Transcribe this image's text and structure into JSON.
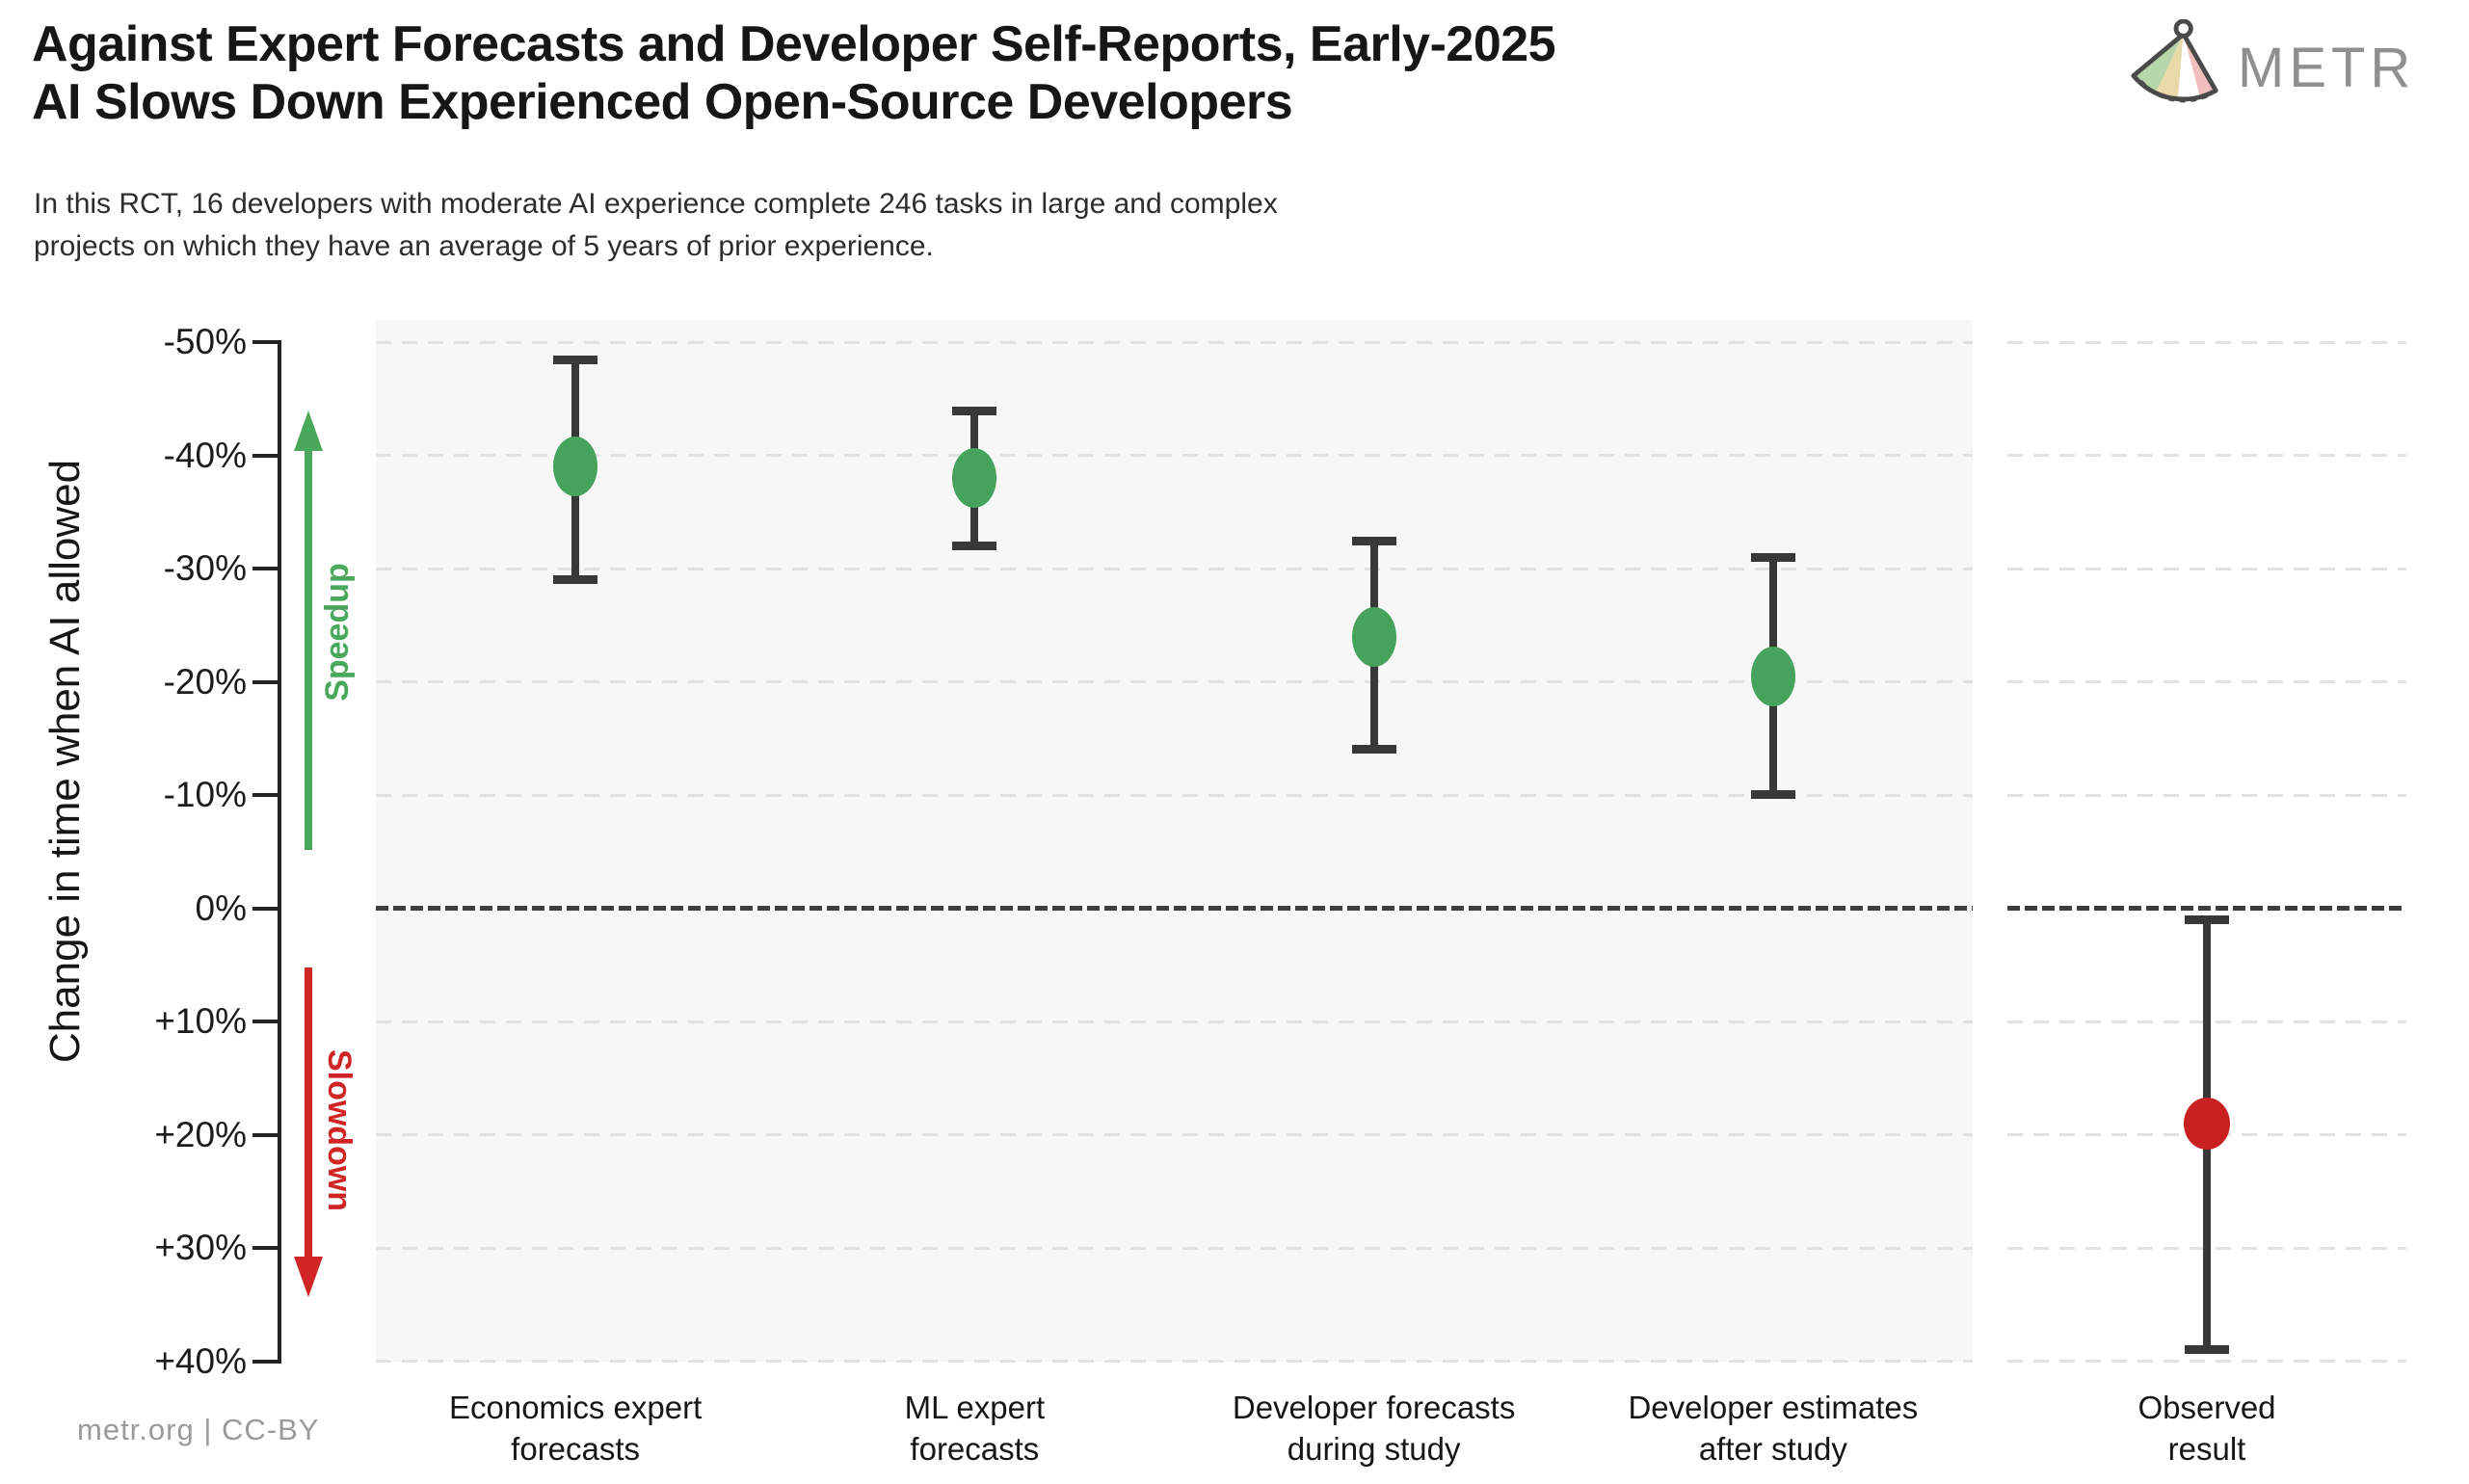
{
  "header": {
    "title": "Against Expert Forecasts and Developer Self-Reports, Early-2025\nAI Slows Down Experienced Open-Source Developers",
    "subtitle": "In this RCT, 16 developers with moderate AI experience complete 246 tasks in large and complex\nprojects on which they have an average of 5 years of prior experience.",
    "logo_text": "METR"
  },
  "footer": {
    "credit": "metr.org  |  CC-BY"
  },
  "colors": {
    "point_green": "#45a35c",
    "point_red": "#c92121",
    "speedup_green": "#4aa85c",
    "slowdown_red": "#cf2525",
    "grid": "#e2e2e2",
    "zero_line": "#3e3e3e",
    "panel_bg": "#f7f7f7",
    "axis": "#232323"
  },
  "chart_data": {
    "type": "scatter",
    "subtype": "point-estimates-with-error-bars",
    "title": "Against Expert Forecasts and Developer Self-Reports, Early-2025 AI Slows Down Experienced Open-Source Developers",
    "subtitle": "In this RCT, 16 developers with moderate AI experience complete 246 tasks in large and complex projects on which they have an average of 5 years of prior experience.",
    "ylabel": "Change in time when AI allowed",
    "y_unit": "percent",
    "y_axis_inverted": true,
    "ylim": [
      -50,
      40
    ],
    "y_ticks": [
      -50,
      -40,
      -30,
      -20,
      -10,
      0,
      10,
      20,
      30,
      40
    ],
    "y_tick_labels": [
      "-50%",
      "-40%",
      "-30%",
      "-20%",
      "-10%",
      "0%",
      "+10%",
      "+20%",
      "+30%",
      "+40%"
    ],
    "grid": "dashed-horizontal",
    "zero_reference_line": true,
    "annotations": {
      "speedup": {
        "label": "Speedup",
        "direction": "up",
        "color": "#4aa85c"
      },
      "slowdown": {
        "label": "Slowdown",
        "direction": "down",
        "color": "#cf2525"
      }
    },
    "points": [
      {
        "category": "Economics expert\nforecasts",
        "mean": -39,
        "ci": [
          -48.5,
          -29
        ],
        "color": "#45a35c",
        "panel": "main"
      },
      {
        "category": "ML expert\nforecasts",
        "mean": -38,
        "ci": [
          -44,
          -32
        ],
        "color": "#45a35c",
        "panel": "main"
      },
      {
        "category": "Developer forecasts\nduring study",
        "mean": -24,
        "ci": [
          -32.5,
          -14
        ],
        "color": "#45a35c",
        "panel": "main"
      },
      {
        "category": "Developer estimates\nafter study",
        "mean": -20.5,
        "ci": [
          -31,
          -10
        ],
        "color": "#45a35c",
        "panel": "main"
      },
      {
        "category": "Observed\nresult",
        "mean": 19,
        "ci": [
          1,
          39
        ],
        "color": "#c92121",
        "panel": "observed"
      }
    ]
  }
}
